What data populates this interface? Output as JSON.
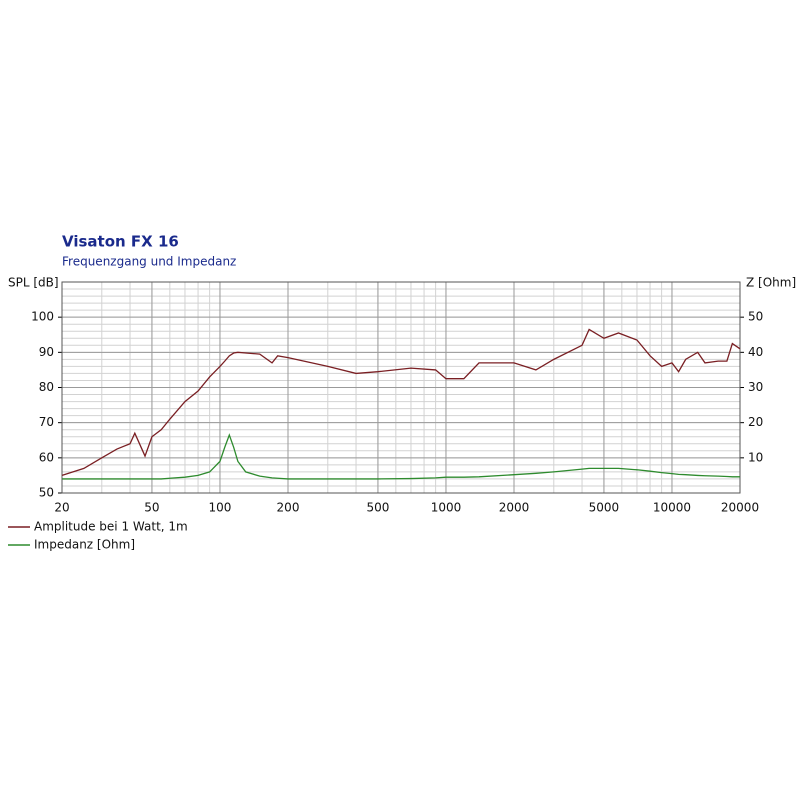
{
  "chart_data": {
    "type": "line",
    "title": "Visaton FX 16",
    "subtitle": "Frequenzgang und Impedanz",
    "y_label": "SPL [dB]",
    "y2_label": "Z [Ohm]",
    "x_scale": "log",
    "grid": true,
    "legend": "bottom-left",
    "x": [
      20,
      25,
      30,
      35,
      40,
      42,
      46.6,
      50,
      55,
      60,
      70,
      80,
      90,
      100,
      105,
      110,
      115,
      120,
      130,
      150,
      170,
      180,
      200,
      300,
      400,
      500,
      700,
      900,
      1000,
      1200,
      1400,
      2000,
      2500,
      3000,
      4000,
      4300,
      5000,
      5800,
      7000,
      8000,
      9000,
      10000,
      10700,
      11500,
      13000,
      14000,
      16000,
      17500,
      18500,
      20000
    ],
    "series": [
      {
        "name": "Amplitude bei 1 Watt, 1m",
        "color": "#7a1f23",
        "axis": "y",
        "values": [
          55,
          57,
          60,
          62.5,
          64,
          67,
          60.5,
          66,
          68,
          71,
          76,
          79,
          83,
          86,
          87.5,
          89,
          89.8,
          90,
          89.8,
          89.5,
          87,
          89,
          88.5,
          86,
          84,
          84.5,
          85.5,
          85,
          82.5,
          82.5,
          87,
          87,
          85,
          88,
          92,
          96.5,
          94,
          95.5,
          93.5,
          89,
          86,
          87,
          84.5,
          88,
          90,
          87,
          87.5,
          87.5,
          92.5,
          91
        ]
      },
      {
        "name": "Impedanz [Ohm]",
        "color": "#2e8b2e",
        "axis": "y2",
        "values": [
          4,
          4,
          4,
          4,
          4,
          4,
          4,
          4,
          4,
          4.2,
          4.5,
          5,
          6,
          9,
          13,
          16.5,
          13,
          9,
          6,
          4.8,
          4.3,
          4.2,
          4,
          4,
          4,
          4,
          4.1,
          4.3,
          4.5,
          4.5,
          4.6,
          5.2,
          5.6,
          6,
          6.8,
          7,
          7,
          7,
          6.6,
          6.2,
          5.8,
          5.5,
          5.3,
          5.2,
          5,
          4.9,
          4.8,
          4.7,
          4.6,
          4.6
        ]
      }
    ],
    "xlim": [
      20,
      20000
    ],
    "xticks": [
      20,
      50,
      100,
      200,
      500,
      1000,
      2000,
      5000,
      10000,
      20000
    ],
    "ylim": [
      50,
      110
    ],
    "yticks": [
      50,
      60,
      70,
      80,
      90,
      100
    ],
    "y2lim": [
      0,
      60
    ],
    "y2ticks": [
      10,
      20,
      30,
      40,
      50
    ]
  }
}
